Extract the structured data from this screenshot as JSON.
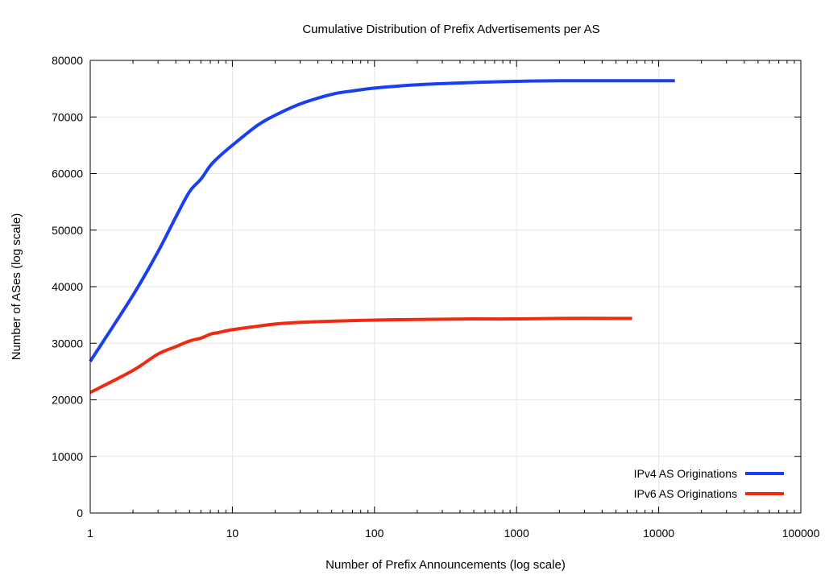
{
  "chart_data": {
    "type": "line",
    "title": "Cumulative Distribution of Prefix Advertisements per AS",
    "xlabel": "Number of Prefix Announcements (log scale)",
    "ylabel": "Number of ASes (log scale)",
    "xscale": "log",
    "xlim": [
      1,
      100000
    ],
    "ylim": [
      0,
      80000
    ],
    "x_ticks": [
      1,
      10,
      100,
      1000,
      10000,
      100000
    ],
    "x_tick_labels": [
      "1",
      "10",
      "100",
      "1000",
      "10000",
      "100000"
    ],
    "y_ticks": [
      0,
      10000,
      20000,
      30000,
      40000,
      50000,
      60000,
      70000,
      80000
    ],
    "y_tick_labels": [
      "0",
      "10000",
      "20000",
      "30000",
      "40000",
      "50000",
      "60000",
      "70000",
      "80000"
    ],
    "grid": true,
    "legend_position": "bottom-right",
    "series": [
      {
        "name": "IPv4 AS Originations",
        "color": "#1a3ff0",
        "x": [
          1,
          2,
          3,
          4,
          5,
          6,
          7,
          8,
          10,
          15,
          20,
          30,
          50,
          70,
          100,
          200,
          500,
          1000,
          2000,
          5000,
          10000,
          13000
        ],
        "y": [
          26800,
          38500,
          46200,
          52300,
          56800,
          59000,
          61400,
          62900,
          65000,
          68500,
          70300,
          72300,
          74000,
          74600,
          75100,
          75700,
          76100,
          76300,
          76400,
          76400,
          76400,
          76400
        ]
      },
      {
        "name": "IPv6 AS Originations",
        "color": "#f02a0f",
        "x": [
          1,
          2,
          3,
          4,
          5,
          6,
          7,
          8,
          10,
          15,
          20,
          30,
          50,
          100,
          200,
          500,
          1000,
          2000,
          5000,
          6500
        ],
        "y": [
          21300,
          25200,
          28100,
          29400,
          30400,
          30900,
          31600,
          31900,
          32400,
          33000,
          33400,
          33700,
          33900,
          34100,
          34200,
          34300,
          34300,
          34400,
          34400,
          34400
        ]
      }
    ]
  }
}
